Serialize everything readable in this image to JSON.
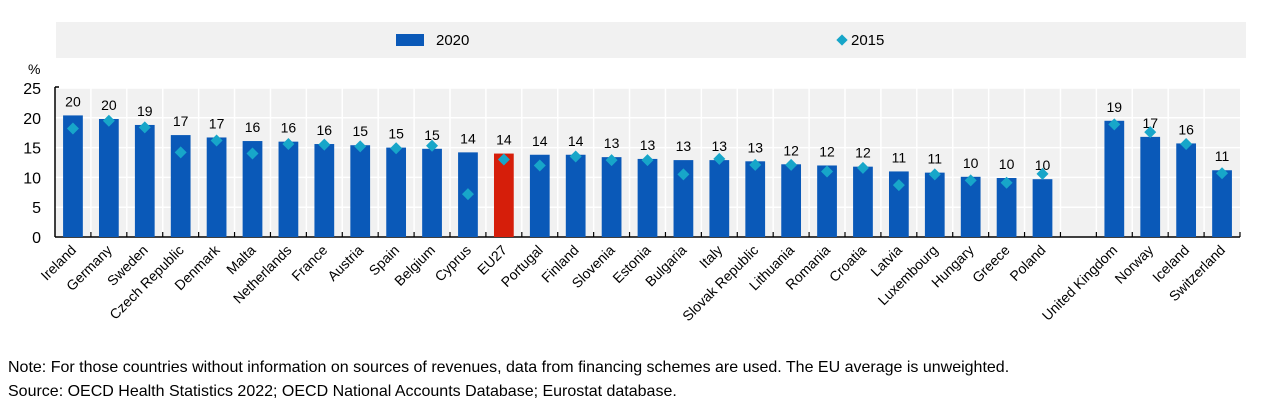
{
  "chart_data": {
    "type": "bar",
    "title": "",
    "ylabel": "%",
    "xlabel": "",
    "ylim": [
      0,
      25
    ],
    "yticks": [
      0,
      5,
      10,
      15,
      20,
      25
    ],
    "grid": true,
    "legend_position": "top",
    "categories": [
      "Ireland",
      "Germany",
      "Sweden",
      "Czech Republic",
      "Denmark",
      "Malta",
      "Netherlands",
      "France",
      "Austria",
      "Spain",
      "Belgium",
      "Cyprus",
      "EU27",
      "Portugal",
      "Finland",
      "Slovenia",
      "Estonia",
      "Bulgaria",
      "Italy",
      "Slovak Republic",
      "Lithuania",
      "Romania",
      "Croatia",
      "Latvia",
      "Luxembourg",
      "Hungary",
      "Greece",
      "Poland",
      "",
      "United Kingdom",
      "Norway",
      "Iceland",
      "Switzerland"
    ],
    "series": [
      {
        "name": "2020",
        "type": "bar",
        "color": "#0a59b8",
        "highlight": {
          "EU27": "#d61e0a"
        },
        "values": [
          20.4,
          19.8,
          18.8,
          17.1,
          16.7,
          16.1,
          16.0,
          15.6,
          15.4,
          15.0,
          14.8,
          14.2,
          14.0,
          13.8,
          13.8,
          13.4,
          13.1,
          12.9,
          12.9,
          12.7,
          12.2,
          12.0,
          11.8,
          11.0,
          10.8,
          10.1,
          9.9,
          9.7,
          null,
          19.5,
          16.8,
          15.7,
          11.2
        ],
        "labels": [
          "20",
          "20",
          "19",
          "17",
          "17",
          "16",
          "16",
          "16",
          "15",
          "15",
          "15",
          "14",
          "14",
          "14",
          "14",
          "13",
          "13",
          "13",
          "13",
          "13",
          "12",
          "12",
          "12",
          "11",
          "11",
          "10",
          "10",
          "10",
          "",
          "19",
          "17",
          "16",
          "11"
        ]
      },
      {
        "name": "2015",
        "type": "marker",
        "color": "#17a6c9",
        "values": [
          18.2,
          19.5,
          18.4,
          14.2,
          16.2,
          14.0,
          15.6,
          15.5,
          15.2,
          14.9,
          15.3,
          7.2,
          13.0,
          12.0,
          13.5,
          12.9,
          12.9,
          10.5,
          13.1,
          12.1,
          12.1,
          11.0,
          11.6,
          8.7,
          10.5,
          9.5,
          9.1,
          10.6,
          null,
          18.9,
          17.6,
          15.6,
          10.7
        ]
      }
    ]
  },
  "legend": {
    "bar_label": "2020",
    "marker_label": "2015"
  },
  "notes": {
    "note": "Note: For those countries without information on sources of revenues, data from financing schemes are used. The EU average is unweighted.",
    "source": "Source: OECD Health Statistics 2022; OECD National Accounts Database; Eurostat database."
  }
}
